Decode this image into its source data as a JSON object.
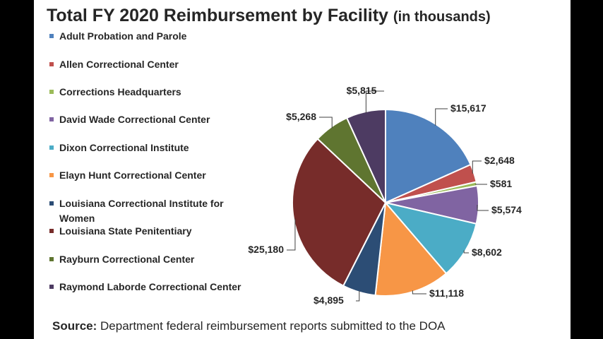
{
  "title_main": "Total FY 2020 Reimbursement by Facility",
  "title_sub": "(in thousands)",
  "source_label": "Source:",
  "source_text": "Department federal reimbursement reports submitted to the DOA",
  "chart_data": {
    "type": "pie",
    "title": "Total FY 2020 Reimbursement by Facility (in thousands)",
    "legend_position": "left",
    "slices": [
      {
        "label": "Adult Probation and Parole",
        "value": 15617,
        "display": "$15,617",
        "color": "#4f81bd"
      },
      {
        "label": "Allen Correctional Center",
        "value": 2648,
        "display": "$2,648",
        "color": "#c0504d"
      },
      {
        "label": "Corrections Headquarters",
        "value": 581,
        "display": "$581",
        "color": "#9bbb59"
      },
      {
        "label": "David Wade Correctional Center",
        "value": 5574,
        "display": "$5,574",
        "color": "#8064a2"
      },
      {
        "label": "Dixon Correctional Institute",
        "value": 8602,
        "display": "$8,602",
        "color": "#4bacc6"
      },
      {
        "label": "Elayn Hunt Correctional Center",
        "value": 11118,
        "display": "$11,118",
        "color": "#f79646"
      },
      {
        "label": "Louisiana Correctional Institute for Women",
        "value": 4895,
        "display": "$4,895",
        "color": "#2c4d75"
      },
      {
        "label": "Louisiana State Penitentiary",
        "value": 25180,
        "display": "$25,180",
        "color": "#772c2a"
      },
      {
        "label": "Rayburn Correctional Center",
        "value": 5268,
        "display": "$5,268",
        "color": "#5f7530"
      },
      {
        "label": "Raymond Laborde Correctional Center",
        "value": 5815,
        "display": "$5,815",
        "color": "#4d3b62"
      }
    ]
  }
}
